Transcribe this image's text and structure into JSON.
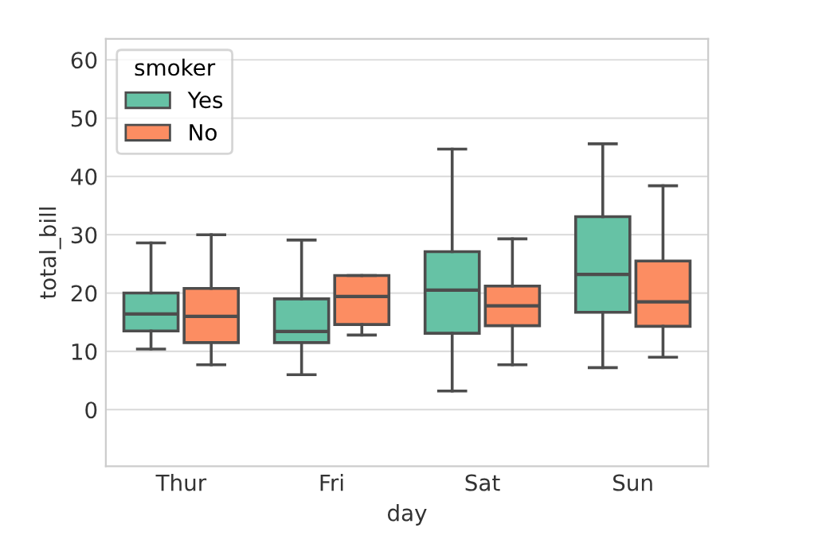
{
  "chart_data": {
    "type": "box",
    "xlabel": "day",
    "ylabel": "total_bill",
    "legend_title": "smoker",
    "legend": "top left",
    "grid": "y",
    "categories": [
      "Thur",
      "Fri",
      "Sat",
      "Sun"
    ],
    "ylim": [
      -9.7,
      63.6
    ],
    "yticks": [
      0,
      10,
      20,
      30,
      40,
      50,
      60
    ],
    "series": [
      {
        "name": "Yes",
        "color": "#66c2a5",
        "boxes": [
          {
            "low": 10.4,
            "q1": 13.5,
            "median": 16.4,
            "q3": 20.0,
            "high": 28.6
          },
          {
            "low": 6.0,
            "q1": 11.5,
            "median": 13.4,
            "q3": 19.0,
            "high": 29.1
          },
          {
            "low": 3.2,
            "q1": 13.1,
            "median": 20.5,
            "q3": 27.1,
            "high": 44.7
          },
          {
            "low": 7.2,
            "q1": 16.7,
            "median": 23.2,
            "q3": 33.1,
            "high": 45.6
          }
        ]
      },
      {
        "name": "No",
        "color": "#fc8d62",
        "boxes": [
          {
            "low": 7.7,
            "q1": 11.5,
            "median": 16.0,
            "q3": 20.8,
            "high": 30.0
          },
          {
            "low": 12.8,
            "q1": 14.6,
            "median": 19.4,
            "q3": 23.0,
            "high": 23.0
          },
          {
            "low": 7.7,
            "q1": 14.4,
            "median": 17.8,
            "q3": 21.2,
            "high": 29.3
          },
          {
            "low": 9.0,
            "q1": 14.3,
            "median": 18.5,
            "q3": 25.5,
            "high": 38.4
          }
        ]
      }
    ]
  }
}
